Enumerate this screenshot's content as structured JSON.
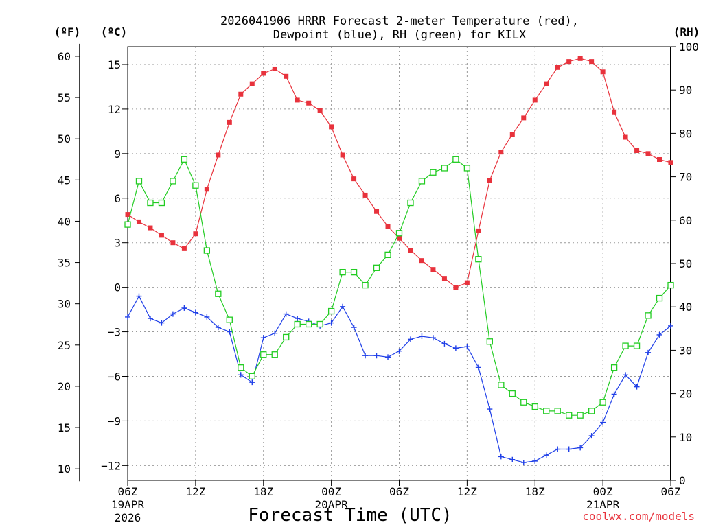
{
  "chart_data": {
    "type": "line",
    "title_line1": "2026041906 HRRR Forecast 2-meter Temperature (red),",
    "title_line2": "Dewpoint (blue), RH (green) for KILX",
    "units": {
      "f": "(ºF)",
      "c": "(ºC)",
      "rh": "(RH)"
    },
    "xlabel": "Forecast Time (UTC)",
    "credit": "coolwx.com/models",
    "x_hours": [
      0,
      1,
      2,
      3,
      4,
      5,
      6,
      7,
      8,
      9,
      10,
      11,
      12,
      13,
      14,
      15,
      16,
      17,
      18,
      19,
      20,
      21,
      22,
      23,
      24,
      25,
      26,
      27,
      28,
      29,
      30,
      31,
      32,
      33,
      34,
      35,
      36,
      37,
      38,
      39,
      40,
      41,
      42,
      43,
      44,
      45,
      46,
      47,
      48
    ],
    "x_range": [
      0,
      48
    ],
    "x_ticks": [
      {
        "hour": 0,
        "label": "06Z",
        "date": "19APR",
        "year": "2026"
      },
      {
        "hour": 6,
        "label": "12Z"
      },
      {
        "hour": 12,
        "label": "18Z"
      },
      {
        "hour": 18,
        "label": "00Z",
        "date": "20APR"
      },
      {
        "hour": 24,
        "label": "06Z"
      },
      {
        "hour": 30,
        "label": "12Z"
      },
      {
        "hour": 36,
        "label": "18Z"
      },
      {
        "hour": 42,
        "label": "00Z",
        "date": "21APR"
      },
      {
        "hour": 48,
        "label": "06Z"
      }
    ],
    "c_axis": {
      "range": [
        -13.0,
        16.2
      ],
      "ticks": [
        "15",
        "12",
        "9",
        "6",
        "3",
        "0",
        "−3",
        "−6",
        "−9",
        "−12"
      ],
      "tick_values": [
        15,
        12,
        9,
        6,
        3,
        0,
        -3,
        -6,
        -9,
        -12
      ]
    },
    "f_axis": {
      "ticks": [
        "60",
        "55",
        "50",
        "45",
        "40",
        "35",
        "30",
        "25",
        "20",
        "15",
        "10"
      ],
      "tick_values": [
        60,
        55,
        50,
        45,
        40,
        35,
        30,
        25,
        20,
        15,
        10
      ]
    },
    "rh_axis": {
      "range": [
        0,
        100
      ],
      "ticks": [
        "100",
        "90",
        "80",
        "70",
        "60",
        "50",
        "40",
        "30",
        "20",
        "10",
        "0"
      ],
      "tick_values": [
        100,
        90,
        80,
        70,
        60,
        50,
        40,
        30,
        20,
        10,
        0
      ]
    },
    "series": [
      {
        "name": "Temperature",
        "axis": "c",
        "color": "#e8323c",
        "marker": "filled-square",
        "values": [
          4.9,
          4.4,
          4.0,
          3.5,
          3.0,
          2.6,
          3.6,
          6.6,
          8.9,
          11.1,
          13.0,
          13.7,
          14.4,
          14.7,
          14.2,
          12.6,
          12.4,
          11.9,
          10.8,
          8.9,
          7.3,
          6.2,
          5.1,
          4.1,
          3.3,
          2.5,
          1.8,
          1.2,
          0.6,
          0.0,
          0.3,
          3.8,
          7.2,
          9.1,
          10.3,
          11.4,
          12.6,
          13.7,
          14.8,
          15.2,
          15.4,
          15.2,
          14.5,
          11.8,
          10.1,
          9.2,
          9.0,
          8.6,
          8.4
        ]
      },
      {
        "name": "Dewpoint",
        "axis": "c",
        "color": "#1f3fe8",
        "marker": "plus",
        "values": [
          -2.0,
          -0.6,
          -2.1,
          -2.4,
          -1.8,
          -1.4,
          -1.7,
          -2.0,
          -2.7,
          -3.0,
          -5.9,
          -6.4,
          -3.4,
          -3.1,
          -1.8,
          -2.1,
          -2.3,
          -2.6,
          -2.4,
          -1.3,
          -2.7,
          -4.6,
          -4.6,
          -4.7,
          -4.3,
          -3.5,
          -3.3,
          -3.4,
          -3.8,
          -4.1,
          -4.0,
          -5.4,
          -8.2,
          -11.4,
          -11.6,
          -11.8,
          -11.7,
          -11.3,
          -10.9,
          -10.9,
          -10.8,
          -10.0,
          -9.1,
          -7.2,
          -5.9,
          -6.7,
          -4.4,
          -3.2,
          -2.6
        ]
      },
      {
        "name": "RH",
        "axis": "rh",
        "color": "#22cc22",
        "marker": "open-square",
        "values": [
          59,
          69,
          64,
          64,
          69,
          74,
          68,
          53,
          43,
          37,
          26,
          24,
          29,
          29,
          33,
          36,
          36,
          36,
          39,
          48,
          48,
          45,
          49,
          52,
          57,
          64,
          69,
          71,
          72,
          74,
          72,
          51,
          32,
          22,
          20,
          18,
          17,
          16,
          16,
          15,
          15,
          16,
          18,
          26,
          31,
          31,
          38,
          42,
          45
        ]
      }
    ]
  }
}
